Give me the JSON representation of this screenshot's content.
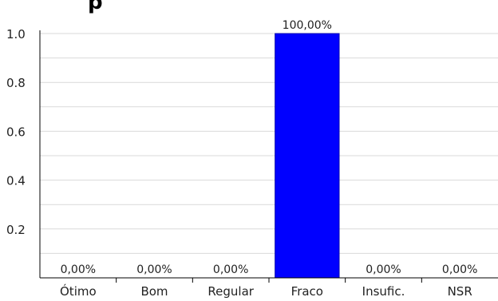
{
  "chart_data": {
    "type": "bar",
    "title": "",
    "title_visible_fragment": "p",
    "categories": [
      "Ótimo",
      "Bom",
      "Regular",
      "Fraco",
      "Insufic.",
      "NSR"
    ],
    "values": [
      0.0,
      0.0,
      0.0,
      1.0,
      0.0,
      0.0
    ],
    "data_labels": [
      "0,00%",
      "0,00%",
      "0,00%",
      "100,00%",
      "0,00%",
      "0,00%"
    ],
    "xlabel": "",
    "ylabel": "",
    "ylim": [
      0,
      1.0
    ],
    "yticks": [
      0.2,
      0.4,
      0.6,
      0.8,
      1.0
    ],
    "ytick_labels": [
      "0.2",
      "0.4",
      "0.6",
      "0.8",
      "1.0"
    ],
    "grid": true,
    "legend": "none",
    "colors": {
      "bar": "#0000ff",
      "bar_edge": "#0a0ab0",
      "grid": "#d9d9d9",
      "axis": "#000000"
    }
  }
}
